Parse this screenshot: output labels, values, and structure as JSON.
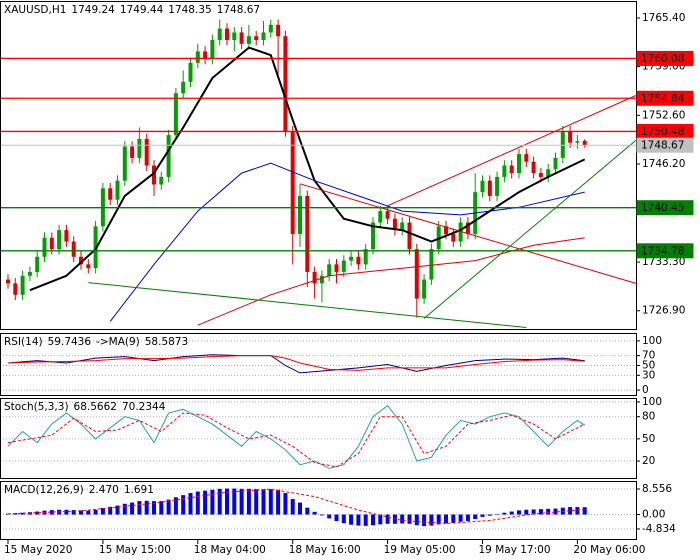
{
  "chart_data": [
    {
      "type": "candlestick",
      "title": "XAUUSD,H1",
      "categories": [
        "15 May 2020",
        null,
        null,
        null,
        null,
        null,
        null,
        null,
        null,
        null,
        null,
        null,
        null,
        "15 May 15:00",
        null,
        null,
        null,
        null,
        null,
        null,
        null,
        null,
        null,
        null,
        null,
        null,
        "18 May 04:00",
        null,
        null,
        null,
        null,
        null,
        null,
        null,
        null,
        null,
        null,
        null,
        null,
        "18 May 16:00",
        null,
        null,
        null,
        null,
        null,
        null,
        null,
        null,
        null,
        null,
        null,
        null,
        "19 May 05:00",
        null,
        null,
        null,
        null,
        null,
        null,
        null,
        null,
        null,
        null,
        null,
        null,
        "19 May 17:00",
        null,
        null,
        null,
        null,
        null,
        null,
        null,
        null,
        null,
        null,
        null,
        null,
        "20 May 06:00",
        null
      ],
      "open": [
        1731.0,
        1730.5,
        1729.0,
        1731.5,
        1732.0,
        1734.0,
        1736.5,
        1735.0,
        1737.5,
        1736.0,
        1734.0,
        1733.0,
        1732.5,
        1738.0,
        1743.0,
        1741.5,
        1744.0,
        1748.5,
        1747.0,
        1749.5,
        1746.0,
        1743.5,
        1744.5,
        1750.0,
        1755.5,
        1757.0,
        1759.5,
        1761.0,
        1760.0,
        1762.5,
        1764.0,
        1762.5,
        1763.5,
        1762.0,
        1763.0,
        1762.5,
        1763.5,
        1764.5,
        1763.0,
        1750.5,
        1737.0,
        1742.0,
        1732.0,
        1730.5,
        1731.5,
        1733.0,
        1732.0,
        1733.5,
        1734.0,
        1733.0,
        1735.0,
        1738.5,
        1740.0,
        1739.0,
        1737.5,
        1738.5,
        1735.0,
        1728.5,
        1731.0,
        1735.0,
        1738.0,
        1737.0,
        1736.0,
        1738.5,
        1737.0,
        1742.5,
        1744.0,
        1742.0,
        1744.5,
        1746.0,
        1745.0,
        1747.5,
        1746.5,
        1745.0,
        1744.5,
        1745.5,
        1747.0,
        1750.5,
        1749.0,
        1749.24
      ],
      "high": [
        1731.7,
        1731.2,
        1732.2,
        1732.7,
        1734.7,
        1737.2,
        1737.2,
        1738.2,
        1738.2,
        1736.7,
        1734.7,
        1733.7,
        1738.7,
        1743.7,
        1743.7,
        1744.7,
        1749.2,
        1749.2,
        1751.0,
        1750.2,
        1746.7,
        1745.2,
        1750.7,
        1756.2,
        1758.5,
        1760.2,
        1762.0,
        1761.7,
        1763.2,
        1765.2,
        1764.7,
        1764.2,
        1764.2,
        1764.5,
        1763.7,
        1765.0,
        1765.2,
        1765.2,
        1763.7,
        1751.2,
        1743.5,
        1742.7,
        1732.7,
        1732.2,
        1733.7,
        1733.7,
        1734.2,
        1734.7,
        1734.7,
        1735.7,
        1739.2,
        1740.7,
        1740.7,
        1739.7,
        1739.2,
        1739.2,
        1735.7,
        1731.7,
        1735.7,
        1738.7,
        1738.7,
        1737.7,
        1739.2,
        1739.2,
        1745.0,
        1744.7,
        1744.7,
        1745.2,
        1746.7,
        1746.7,
        1748.2,
        1748.2,
        1747.2,
        1745.7,
        1746.2,
        1747.7,
        1751.2,
        1751.2,
        1750.0,
        1749.44
      ],
      "low": [
        1729.8,
        1728.3,
        1728.3,
        1730.8,
        1731.3,
        1733.3,
        1734.3,
        1734.3,
        1735.3,
        1733.3,
        1732.3,
        1731.8,
        1731.8,
        1737.3,
        1740.8,
        1740.8,
        1743.3,
        1746.3,
        1746.3,
        1745.3,
        1742.0,
        1742.8,
        1743.8,
        1749.3,
        1754.8,
        1756.3,
        1758.8,
        1759.3,
        1759.3,
        1761.8,
        1761.8,
        1761.0,
        1761.3,
        1761.3,
        1761.8,
        1761.8,
        1762.8,
        1758.0,
        1749.8,
        1733.0,
        1735.3,
        1730.0,
        1728.5,
        1728.0,
        1730.8,
        1730.5,
        1731.3,
        1732.8,
        1732.3,
        1732.3,
        1734.3,
        1737.8,
        1738.3,
        1736.8,
        1736.8,
        1734.3,
        1726.0,
        1727.8,
        1730.3,
        1734.3,
        1736.3,
        1735.3,
        1735.3,
        1736.3,
        1736.3,
        1741.8,
        1741.3,
        1741.3,
        1743.8,
        1744.3,
        1744.3,
        1745.8,
        1744.3,
        1743.8,
        1743.8,
        1744.8,
        1746.3,
        1748.3,
        1748.2,
        1748.35
      ],
      "close": [
        1730.5,
        1729.0,
        1731.5,
        1732.0,
        1734.0,
        1736.5,
        1735.0,
        1737.5,
        1736.0,
        1734.0,
        1733.0,
        1732.5,
        1738.0,
        1743.0,
        1741.5,
        1744.0,
        1748.5,
        1747.0,
        1749.5,
        1746.0,
        1743.5,
        1744.5,
        1750.0,
        1755.5,
        1757.0,
        1759.5,
        1761.0,
        1760.0,
        1762.5,
        1764.0,
        1762.5,
        1763.5,
        1762.0,
        1763.0,
        1762.5,
        1763.5,
        1764.5,
        1763.0,
        1750.5,
        1737.0,
        1742.0,
        1732.0,
        1730.5,
        1731.5,
        1733.0,
        1732.0,
        1733.5,
        1734.0,
        1733.0,
        1735.0,
        1738.5,
        1740.0,
        1739.0,
        1737.5,
        1738.5,
        1735.0,
        1728.5,
        1731.0,
        1735.0,
        1738.0,
        1737.0,
        1736.0,
        1738.5,
        1737.0,
        1742.5,
        1744.0,
        1742.0,
        1744.5,
        1746.0,
        1745.0,
        1747.5,
        1746.5,
        1745.0,
        1744.5,
        1745.5,
        1747.0,
        1750.5,
        1749.0,
        1749.2,
        1748.67
      ],
      "up_color": "#00a000",
      "down_color": "#e00000",
      "ylim": [
        1724.5,
        1767.5
      ],
      "yticks": [
        {
          "value": 1765.4,
          "label": "1765.40"
        },
        {
          "value": 1759,
          "label": "1759.00"
        },
        {
          "value": 1752.6,
          "label": "1752.60"
        },
        {
          "value": 1746.2,
          "label": "1746.20"
        },
        {
          "value": 1733.3,
          "label": "1733.30"
        },
        {
          "value": 1726.9,
          "label": "1726.90"
        }
      ],
      "levels": [
        {
          "value": 1760.08,
          "color": "#ff0000"
        },
        {
          "value": 1754.84,
          "color": "#ff0000"
        },
        {
          "value": 1750.48,
          "color": "#ff0000"
        },
        {
          "value": 1740.45,
          "color": "#008000"
        },
        {
          "value": 1734.78,
          "color": "#008000"
        }
      ],
      "price_color": "#c0c0c0",
      "lines": [
        {
          "color": "#000000",
          "x": [
            3,
            8,
            12,
            16,
            20,
            24,
            28,
            33,
            36,
            39,
            42,
            46,
            50,
            54,
            58,
            62,
            66,
            70,
            74,
            79
          ],
          "values": [
            1729.6,
            1731.5,
            1735,
            1742,
            1745,
            1751,
            1757.5,
            1761.5,
            1760.5,
            1752,
            1744,
            1739,
            1738,
            1737.5,
            1736,
            1737.5,
            1740,
            1742.5,
            1744.5,
            1746.8
          ]
        },
        {
          "color": "#0000cc",
          "x": [
            14,
            20,
            26,
            32,
            36,
            42,
            48,
            54,
            62,
            70,
            79
          ],
          "values": [
            1725.5,
            1733,
            1740,
            1745,
            1746.3,
            1744,
            1742,
            1740,
            1739.5,
            1740.5,
            1742.5
          ]
        },
        {
          "color": "#dd0000",
          "x": [
            26,
            36,
            44,
            54,
            64,
            72,
            79
          ],
          "values": [
            1725,
            1729,
            1731.5,
            1732.5,
            1733.5,
            1735.5,
            1736.5
          ]
        },
        {
          "color": "#e00000",
          "x": [
            40,
            86
          ],
          "values": [
            1743.6,
            1730.5
          ]
        },
        {
          "color": "#e00000",
          "x": [
            52,
            86
          ],
          "values": [
            1740.7,
            1755.2
          ]
        },
        {
          "color": "#008000",
          "x": [
            11,
            71
          ],
          "values": [
            1730.6,
            1724.7
          ]
        },
        {
          "color": "#008000",
          "x": [
            57,
            86
          ],
          "values": [
            1725.9,
            1749.3
          ]
        }
      ]
    },
    {
      "type": "line",
      "title": "RSI(14)",
      "ylim": [
        -10,
        114
      ],
      "yticks": [
        100,
        70,
        50,
        30,
        0
      ],
      "series": [
        {
          "color": "#000080",
          "x": [
            0,
            4,
            8,
            12,
            16,
            20,
            24,
            28,
            32,
            36,
            38,
            40,
            44,
            48,
            52,
            56,
            60,
            64,
            68,
            72,
            76,
            79
          ],
          "values": [
            55,
            60,
            55,
            65,
            68,
            60,
            68,
            72,
            70,
            70,
            50,
            35,
            40,
            45,
            52,
            38,
            50,
            60,
            63,
            62,
            65,
            59.7436
          ]
        },
        {
          "name": "->MA(9)",
          "color": "#ff0000",
          "x": [
            0,
            4,
            8,
            12,
            16,
            20,
            24,
            28,
            32,
            36,
            38,
            40,
            44,
            48,
            52,
            56,
            60,
            64,
            68,
            72,
            76,
            79
          ],
          "values": [
            55,
            57,
            58,
            60,
            64,
            64,
            65,
            68,
            70,
            70,
            65,
            55,
            42,
            40,
            45,
            45,
            45,
            52,
            58,
            61,
            62,
            58.5873
          ]
        }
      ]
    },
    {
      "type": "line",
      "title": "Stoch(5,3,3)",
      "ylim": [
        -3,
        104
      ],
      "yticks": [
        100,
        80,
        50,
        20
      ],
      "series": [
        {
          "color": "#20a0b0",
          "x": [
            0,
            2,
            4,
            6,
            8,
            10,
            12,
            14,
            16,
            18,
            20,
            22,
            24,
            26,
            28,
            30,
            32,
            34,
            36,
            38,
            40,
            42,
            44,
            46,
            48,
            50,
            52,
            54,
            56,
            58,
            60,
            62,
            64,
            66,
            68,
            70,
            72,
            74,
            76,
            78,
            79
          ],
          "values": [
            40,
            60,
            45,
            70,
            85,
            70,
            50,
            65,
            80,
            75,
            45,
            85,
            90,
            80,
            70,
            55,
            40,
            60,
            50,
            35,
            15,
            20,
            10,
            15,
            40,
            80,
            95,
            70,
            20,
            25,
            55,
            75,
            70,
            80,
            85,
            80,
            60,
            40,
            60,
            75,
            68.5662
          ]
        },
        {
          "color": "#ff0000",
          "dash": true,
          "x": [
            0,
            3,
            6,
            9,
            12,
            15,
            18,
            21,
            24,
            27,
            30,
            33,
            36,
            39,
            42,
            45,
            48,
            51,
            54,
            57,
            60,
            63,
            66,
            69,
            72,
            75,
            78,
            79
          ],
          "values": [
            45,
            50,
            55,
            78,
            60,
            62,
            75,
            60,
            85,
            82,
            65,
            50,
            55,
            40,
            18,
            12,
            30,
            80,
            80,
            30,
            40,
            70,
            75,
            82,
            70,
            50,
            65,
            70.2344
          ]
        }
      ]
    },
    {
      "type": "histogram",
      "title": "MACD(12,26,9)",
      "ylim": [
        -8.2,
        10.9
      ],
      "yticks": [
        8.556,
        {
          "value": 0,
          "label": "0.00"
        },
        -4.834
      ],
      "color": "#0000ff",
      "values": [
        0.3,
        0.5,
        0.6,
        0.8,
        1.0,
        1.3,
        1.5,
        1.6,
        1.6,
        1.5,
        1.4,
        1.3,
        1.6,
        2.2,
        2.6,
        3.0,
        3.6,
        4.0,
        4.5,
        4.6,
        4.5,
        4.5,
        5.0,
        5.8,
        6.5,
        7.2,
        7.7,
        8.0,
        8.3,
        8.6,
        8.7,
        8.7,
        8.6,
        8.6,
        8.5,
        8.5,
        8.5,
        8.3,
        7.2,
        5.2,
        4.0,
        2.3,
        0.9,
        -0.3,
        -1.3,
        -2.2,
        -2.9,
        -3.4,
        -3.7,
        -3.8,
        -3.6,
        -3.3,
        -3.1,
        -3.1,
        -3.0,
        -3.1,
        -3.6,
        -3.9,
        -3.7,
        -3.3,
        -3.0,
        -2.8,
        -2.4,
        -2.2,
        -1.5,
        -0.8,
        -0.4,
        0.1,
        0.6,
        1.0,
        1.4,
        1.6,
        1.7,
        1.8,
        1.9,
        2.0,
        2.3,
        2.5,
        2.5,
        2.47
      ],
      "value_labels": [
        null,
        null,
        null,
        null,
        null,
        null,
        null,
        null,
        null,
        null,
        null,
        null,
        null,
        null,
        null,
        null,
        null,
        null,
        null,
        null,
        null,
        null,
        null,
        null,
        null,
        null,
        null,
        null,
        null,
        null,
        null,
        null,
        null,
        null,
        null,
        null,
        null,
        null,
        null,
        null,
        null,
        null,
        null,
        null,
        null,
        null,
        null,
        null,
        null,
        null,
        null,
        null,
        null,
        null,
        null,
        null,
        null,
        null,
        null,
        null,
        null,
        null,
        null,
        null,
        null,
        null,
        null,
        null,
        null,
        null,
        null,
        null,
        null,
        null,
        null,
        null,
        null,
        null,
        null,
        "2.470"
      ],
      "signal": {
        "color": "#ff0000",
        "x": [
          0,
          10,
          20,
          30,
          36,
          42,
          48,
          54,
          60,
          66,
          72,
          79
        ],
        "values": [
          0.2,
          1.2,
          3.8,
          7.5,
          8.5,
          6,
          1.5,
          -2,
          -3,
          -2,
          0.2,
          1.691
        ]
      }
    }
  ]
}
